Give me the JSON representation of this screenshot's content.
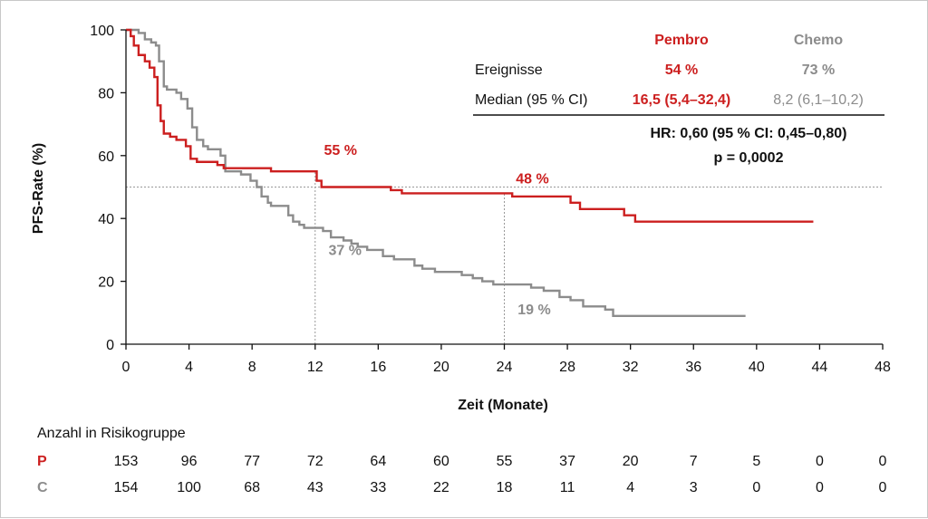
{
  "chart_data": {
    "type": "line",
    "ylabel": "PFS-Rate (%)",
    "xlabel": "Zeit (Monate)",
    "xlim": [
      0,
      48
    ],
    "ylim": [
      0,
      100
    ],
    "x_ticks": [
      0,
      4,
      8,
      12,
      16,
      20,
      24,
      28,
      32,
      36,
      40,
      44,
      48
    ],
    "y_ticks": [
      0,
      20,
      40,
      60,
      80,
      100
    ],
    "colors": {
      "pembro": "#cc1f1f",
      "chemo": "#8c8c8c"
    },
    "series": [
      {
        "name": "Pembro",
        "points": [
          [
            0,
            100
          ],
          [
            0.3,
            98
          ],
          [
            0.5,
            95
          ],
          [
            0.8,
            92
          ],
          [
            1.2,
            90
          ],
          [
            1.5,
            88
          ],
          [
            1.8,
            85
          ],
          [
            2.0,
            76
          ],
          [
            2.2,
            71
          ],
          [
            2.4,
            67
          ],
          [
            2.8,
            66
          ],
          [
            3.2,
            65
          ],
          [
            3.8,
            63
          ],
          [
            4.1,
            59
          ],
          [
            4.5,
            58
          ],
          [
            5.8,
            57
          ],
          [
            6.2,
            56
          ],
          [
            9.2,
            55
          ],
          [
            9.6,
            55
          ],
          [
            12.1,
            52
          ],
          [
            12.4,
            50
          ],
          [
            16,
            50
          ],
          [
            16.8,
            49
          ],
          [
            17.5,
            48
          ],
          [
            23.8,
            48
          ],
          [
            24.5,
            47
          ],
          [
            27.5,
            47
          ],
          [
            28.2,
            45
          ],
          [
            28.8,
            43
          ],
          [
            31.6,
            41
          ],
          [
            32.3,
            39
          ],
          [
            43.6,
            39
          ]
        ]
      },
      {
        "name": "Chemo",
        "points": [
          [
            0,
            100
          ],
          [
            0.8,
            99
          ],
          [
            1.2,
            97
          ],
          [
            1.6,
            96
          ],
          [
            1.9,
            95
          ],
          [
            2.1,
            90
          ],
          [
            2.4,
            82
          ],
          [
            2.6,
            81
          ],
          [
            3.2,
            80
          ],
          [
            3.5,
            78
          ],
          [
            3.9,
            75
          ],
          [
            4.2,
            69
          ],
          [
            4.5,
            65
          ],
          [
            4.9,
            63
          ],
          [
            5.2,
            62
          ],
          [
            6.0,
            60
          ],
          [
            6.3,
            55
          ],
          [
            7.3,
            54
          ],
          [
            7.9,
            52
          ],
          [
            8.3,
            50
          ],
          [
            8.6,
            47
          ],
          [
            9.0,
            45
          ],
          [
            9.2,
            44
          ],
          [
            10.3,
            41
          ],
          [
            10.6,
            39
          ],
          [
            11.0,
            38
          ],
          [
            11.3,
            37
          ],
          [
            12.5,
            36
          ],
          [
            13.0,
            34
          ],
          [
            13.8,
            33
          ],
          [
            14.3,
            32
          ],
          [
            14.7,
            31
          ],
          [
            15.3,
            30
          ],
          [
            16.3,
            28
          ],
          [
            17.0,
            27
          ],
          [
            18.3,
            25
          ],
          [
            18.8,
            24
          ],
          [
            19.6,
            23
          ],
          [
            21.3,
            22
          ],
          [
            22.0,
            21
          ],
          [
            22.6,
            20
          ],
          [
            23.3,
            19
          ],
          [
            25.7,
            18
          ],
          [
            26.5,
            17
          ],
          [
            27.5,
            15
          ],
          [
            28.2,
            14
          ],
          [
            29.0,
            12
          ],
          [
            30.4,
            11
          ],
          [
            30.9,
            9
          ],
          [
            39.3,
            9
          ]
        ]
      }
    ],
    "reference_line_y": 50,
    "landmarks": [
      {
        "x": 12,
        "pembro": 55,
        "chemo": 37,
        "pembro_label": "55 %",
        "chemo_label": "37 %"
      },
      {
        "x": 24,
        "pembro": 48,
        "chemo": 19,
        "pembro_label": "48 %",
        "chemo_label": "19 %"
      }
    ],
    "legend_table": {
      "col_pembro": "Pembro",
      "col_chemo": "Chemo",
      "row1_label": "Ereignisse",
      "row1_pembro": "54 %",
      "row1_chemo": "73 %",
      "row2_label": "Median (95 % CI)",
      "row2_pembro": "16,5 (5,4–32,4)",
      "row2_chemo": "8,2 (6,1–10,2)",
      "hr": "HR: 0,60 (95 % CI: 0,45–0,80)",
      "p": "p = 0,0002"
    },
    "risk_table": {
      "title": "Anzahl in Risikogruppe",
      "rows": [
        {
          "label": "P",
          "values": [
            153,
            96,
            77,
            72,
            64,
            60,
            55,
            37,
            20,
            7,
            5,
            0,
            0
          ]
        },
        {
          "label": "C",
          "values": [
            154,
            100,
            68,
            43,
            33,
            22,
            18,
            11,
            4,
            3,
            0,
            0,
            0
          ]
        }
      ]
    }
  }
}
